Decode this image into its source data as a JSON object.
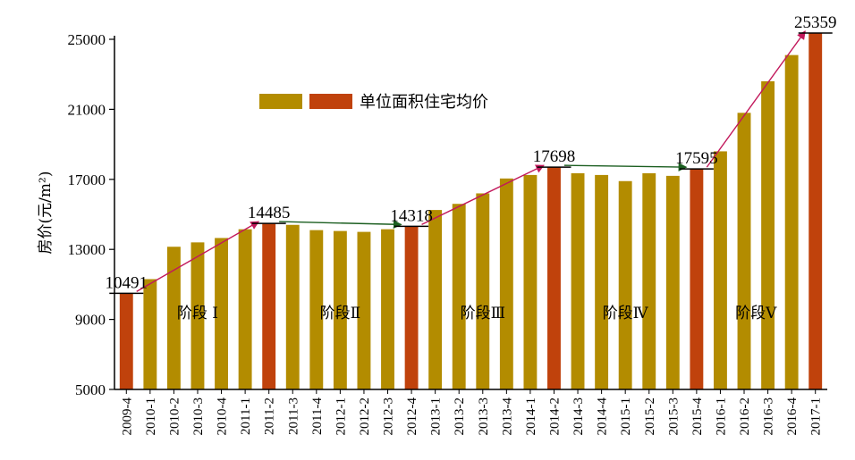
{
  "chart_data": {
    "type": "bar",
    "ylabel": "房价(元/m²)",
    "ylim": [
      5000,
      25000
    ],
    "yticks": [
      "5000",
      "9000",
      "13000",
      "17000",
      "21000",
      "25000"
    ],
    "categories": [
      "2009-4",
      "2010-1",
      "2010-2",
      "2010-3",
      "2010-4",
      "2011-1",
      "2011-2",
      "2011-3",
      "2011-4",
      "2012-1",
      "2012-2",
      "2012-3",
      "2012-4",
      "2013-1",
      "2013-2",
      "2013-3",
      "2013-4",
      "2014-1",
      "2014-2",
      "2014-3",
      "2014-4",
      "2015-1",
      "2015-2",
      "2015-3",
      "2015-4",
      "2016-1",
      "2016-2",
      "2016-3",
      "2016-4",
      "2017-1"
    ],
    "values": [
      10491,
      11300,
      13150,
      13400,
      13650,
      14150,
      14485,
      14400,
      14100,
      14050,
      14000,
      14150,
      14318,
      15250,
      15600,
      16200,
      17050,
      17250,
      17698,
      17350,
      17250,
      16900,
      17350,
      17200,
      17595,
      18600,
      20800,
      22600,
      24100,
      25359
    ],
    "highlight_indices": [
      0,
      6,
      12,
      18,
      24,
      29
    ],
    "data_labels": [
      {
        "index": 0,
        "text": "10491"
      },
      {
        "index": 6,
        "text": "14485"
      },
      {
        "index": 12,
        "text": "14318"
      },
      {
        "index": 18,
        "text": "17698"
      },
      {
        "index": 24,
        "text": "17595"
      },
      {
        "index": 29,
        "text": "25359"
      }
    ],
    "colors": {
      "bar": "#b38c00",
      "highlight": "#c0420c",
      "arrow_up": "#c2185b",
      "arrow_flat": "#1b5e20"
    },
    "legend": {
      "text": "单位面积住宅均价",
      "placement": "top-center"
    },
    "phases": [
      {
        "text": "阶段 Ⅰ",
        "from": 0,
        "to": 6,
        "trend": "up"
      },
      {
        "text": "阶段Ⅱ",
        "from": 6,
        "to": 12,
        "trend": "flat"
      },
      {
        "text": "阶段Ⅲ",
        "from": 12,
        "to": 18,
        "trend": "up"
      },
      {
        "text": "阶段Ⅳ",
        "from": 18,
        "to": 24,
        "trend": "flat"
      },
      {
        "text": "阶段Ⅴ",
        "from": 24,
        "to": 29,
        "trend": "up"
      }
    ]
  }
}
